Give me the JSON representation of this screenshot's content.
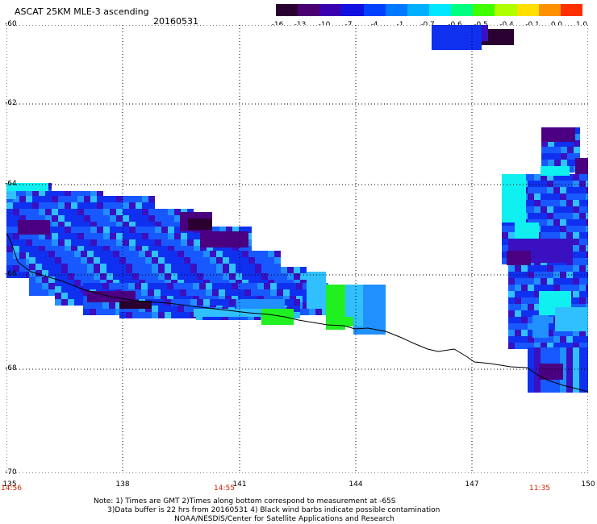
{
  "header": {
    "title": "ASCAT 25KM MLE-3 ascending",
    "date": "20160531"
  },
  "colorbar": {
    "labels": [
      "-16",
      "-13",
      "-10",
      "-7",
      "-4",
      "-1",
      "-0.7",
      "-0.6",
      "-0.5",
      "-0.4",
      "-0.1",
      "0.0",
      "1.0"
    ],
    "colors": [
      "#2a0030",
      "#4a0070",
      "#3a00b0",
      "#1010e0",
      "#0040ff",
      "#0078ff",
      "#00b0ff",
      "#00e8ff",
      "#00ff80",
      "#40ff00",
      "#b0ff00",
      "#ffe000",
      "#ff9000",
      "#ff3000"
    ]
  },
  "axes": {
    "y_labels": [
      "-60",
      "-62",
      "-64",
      "-66",
      "-68",
      "-70"
    ],
    "x_labels": [
      "135",
      "138",
      "141",
      "144",
      "147",
      "150"
    ],
    "time_labels": [
      "14:56",
      "14:55",
      "11:35"
    ]
  },
  "notes": {
    "line1": "Note: 1) Times are GMT 2)Times along bottom correspond to measurement at -65S",
    "line2": "      3)Data buffer is 22 hrs from 20160531 4) Black wind barbs indicate possible contamination",
    "line3": "                                   NOAA/NESDIS/Center for Satellite Applications and Research"
  },
  "map": {
    "grid": true,
    "lat_range": [
      -70,
      -60
    ],
    "lon_range": [
      135,
      150
    ],
    "colors": {
      "deep_purple": "#2a0030",
      "purple": "#4a0080",
      "indigo": "#3a10c0",
      "blue": "#1030f0",
      "mid_blue": "#1858ff",
      "light_blue": "#2090ff",
      "sky": "#30c0ff",
      "cyan": "#10f0f0",
      "green": "#20f020"
    }
  }
}
